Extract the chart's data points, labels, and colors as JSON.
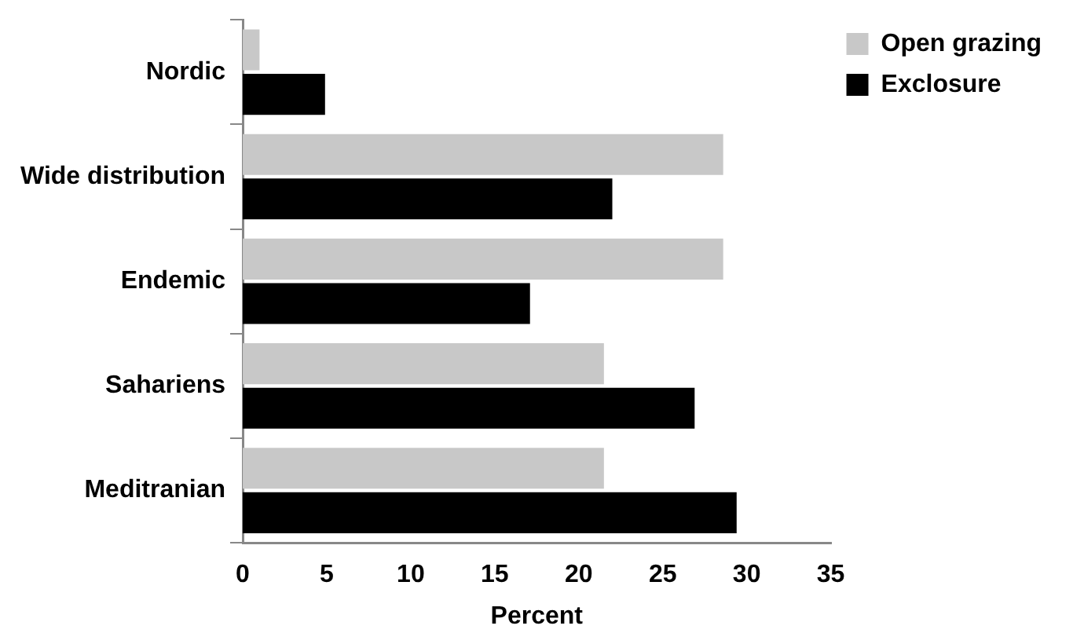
{
  "chart_data": {
    "type": "bar",
    "orientation": "horizontal",
    "xlabel": "Percent",
    "categories": [
      "Nordic",
      "Wide distribution",
      "Endemic",
      "Sahariens",
      "Meditranian"
    ],
    "series": [
      {
        "name": "Open grazing",
        "color": "#c8c8c8",
        "values": [
          1.0,
          28.6,
          28.6,
          21.5,
          21.5
        ]
      },
      {
        "name": "Exclosure",
        "color": "#000000",
        "values": [
          4.9,
          22.0,
          17.1,
          26.9,
          29.4
        ]
      }
    ],
    "xlim": [
      0,
      35
    ],
    "xticks": [
      0,
      5,
      10,
      15,
      20,
      25,
      30,
      35
    ],
    "grid": false,
    "legend": "top right"
  }
}
